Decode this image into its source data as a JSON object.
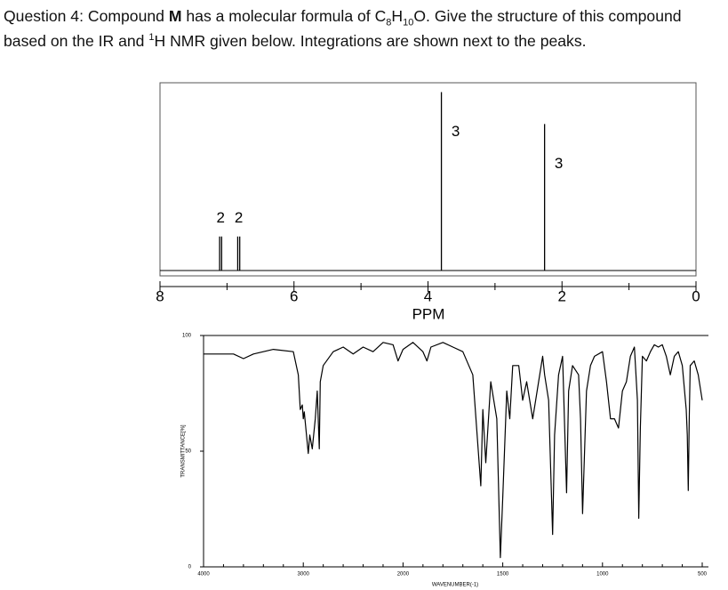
{
  "question": {
    "parts": [
      "Question 4: Compound ",
      "M",
      " has a molecular formula of C",
      "8",
      "H",
      "10",
      "O.  Give the structure of this compound based on the IR and ",
      "1",
      "H NMR given below. Integrations are shown next to the peaks."
    ]
  },
  "chart_data": [
    {
      "type": "stick",
      "xlabel": "PPM",
      "xlim": [
        8,
        0
      ],
      "xticks": [
        8,
        6,
        4,
        2,
        0
      ],
      "minor_xticks": [
        7,
        5,
        3,
        1
      ],
      "ylim": [
        -3,
        100
      ],
      "color": "#000000",
      "peaks": [
        {
          "x": [
            7.11,
            7.08
          ],
          "values": [
            18,
            18
          ],
          "integration": "2"
        },
        {
          "x": [
            6.84,
            6.81
          ],
          "values": [
            18,
            18
          ],
          "integration": "2"
        },
        {
          "x": [
            3.8
          ],
          "values": [
            95
          ],
          "integration": "3"
        },
        {
          "x": [
            2.26
          ],
          "values": [
            78
          ],
          "integration": "3"
        }
      ]
    },
    {
      "type": "line",
      "xlabel": "WAVENUMBER(-1)",
      "ylabel": "TRANSMITTANCE[%]",
      "xlim": [
        4000,
        500
      ],
      "x_scale_break": 2000,
      "x_scale_ratio": 2,
      "xticks": [
        4000,
        3000,
        2000,
        1500,
        1000,
        500
      ],
      "minor_xticks": [
        3800,
        3600,
        3400,
        3200,
        2800,
        2600,
        2400,
        2200,
        1900,
        1800,
        1700,
        1600,
        1400,
        1300,
        1200,
        1100,
        900,
        800,
        700,
        600
      ],
      "ylim": [
        0,
        100
      ],
      "yticks": [
        0,
        50,
        100
      ],
      "color": "#000000",
      "x": [
        4000,
        3700,
        3600,
        3500,
        3300,
        3100,
        3050,
        3030,
        3010,
        3000,
        2990,
        2950,
        2935,
        2910,
        2880,
        2860,
        2840,
        2830,
        2800,
        2700,
        2600,
        2500,
        2400,
        2300,
        2200,
        2100,
        2050,
        2000,
        1950,
        1900,
        1880,
        1860,
        1800,
        1750,
        1700,
        1650,
        1610,
        1600,
        1585,
        1560,
        1530,
        1512,
        1500,
        1480,
        1465,
        1450,
        1420,
        1400,
        1380,
        1350,
        1300,
        1290,
        1270,
        1250,
        1240,
        1220,
        1200,
        1180,
        1170,
        1150,
        1120,
        1110,
        1100,
        1080,
        1060,
        1040,
        1000,
        980,
        960,
        940,
        920,
        900,
        880,
        860,
        840,
        825,
        818,
        810,
        800,
        780,
        760,
        740,
        720,
        700,
        680,
        660,
        640,
        620,
        600,
        580,
        575,
        570,
        565,
        560,
        540,
        520,
        500
      ],
      "values": [
        92,
        92,
        90,
        92,
        94,
        93,
        83,
        68,
        70,
        64,
        67,
        49,
        57,
        51,
        64,
        76,
        51,
        80,
        87,
        93,
        95,
        92,
        95,
        93,
        97,
        96,
        89,
        94,
        97,
        93,
        89,
        95,
        97,
        95,
        93,
        83,
        35,
        68,
        45,
        80,
        64,
        4,
        30,
        76,
        64,
        87,
        87,
        72,
        80,
        64,
        91,
        83,
        72,
        14,
        57,
        83,
        91,
        32,
        76,
        87,
        83,
        64,
        23,
        76,
        87,
        91,
        93,
        80,
        64,
        64,
        60,
        76,
        80,
        91,
        95,
        72,
        21,
        60,
        91,
        89,
        93,
        96,
        95,
        96,
        91,
        83,
        91,
        93,
        87,
        68,
        57,
        33,
        64,
        87,
        89,
        83,
        72
      ]
    }
  ]
}
